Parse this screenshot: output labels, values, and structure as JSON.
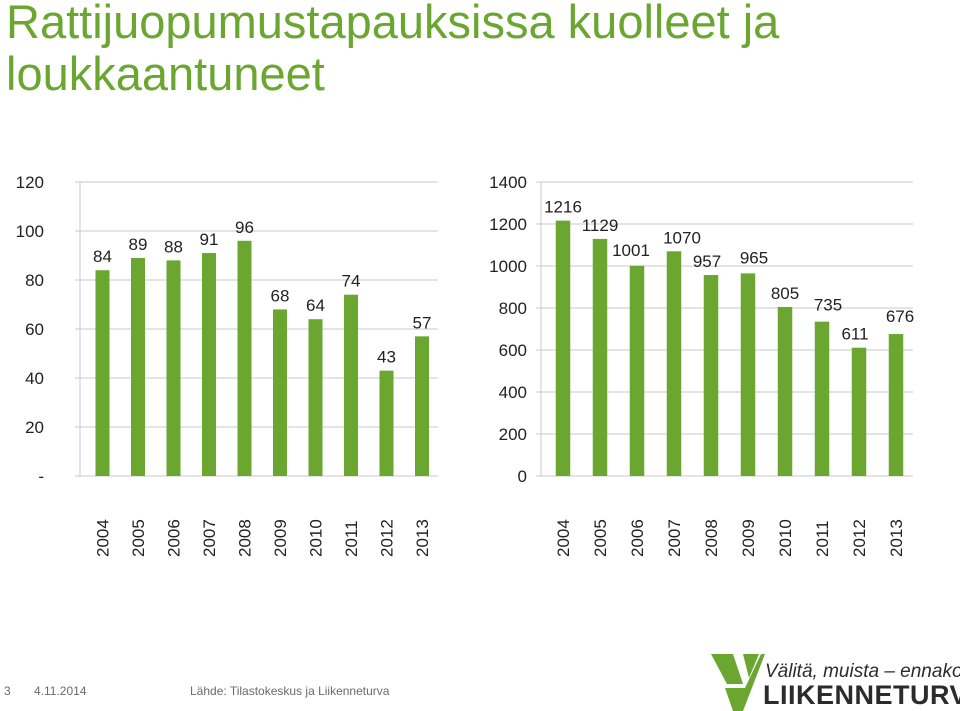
{
  "title": "Rattijuopumustapauksissa kuolleet ja loukkaantuneet",
  "chart_data": [
    {
      "type": "bar",
      "categories": [
        "2004",
        "2005",
        "2006",
        "2007",
        "2008",
        "2009",
        "2010",
        "2011",
        "2012",
        "2013"
      ],
      "values": [
        84,
        89,
        88,
        91,
        96,
        68,
        64,
        74,
        43,
        57
      ],
      "ylim": [
        0,
        120
      ],
      "yticks": [
        "-",
        "20",
        "40",
        "60",
        "80",
        "100",
        "120"
      ],
      "ytick_values": [
        0,
        20,
        40,
        60,
        80,
        100,
        120
      ],
      "color": "#6aa630",
      "grid": true
    },
    {
      "type": "bar",
      "categories": [
        "2004",
        "2005",
        "2006",
        "2007",
        "2008",
        "2009",
        "2010",
        "2011",
        "2012",
        "2013"
      ],
      "values": [
        1216,
        1129,
        1001,
        1070,
        957,
        965,
        805,
        735,
        611,
        676
      ],
      "ylim": [
        0,
        1400
      ],
      "yticks": [
        "0",
        "200",
        "400",
        "600",
        "800",
        "1000",
        "1200",
        "1400"
      ],
      "ytick_values": [
        0,
        200,
        400,
        600,
        800,
        1000,
        1200,
        1400
      ],
      "color": "#6aa630",
      "grid": true
    }
  ],
  "footer": {
    "page_number": "3",
    "date": "4.11.2014",
    "source": "Lähde: Tilastokeskus ja Liikenneturva"
  },
  "logo": {
    "slogan": "Välitä, muista – ennakoi.",
    "name": "LIIKENNETURVA",
    "color": "#6aa630"
  }
}
